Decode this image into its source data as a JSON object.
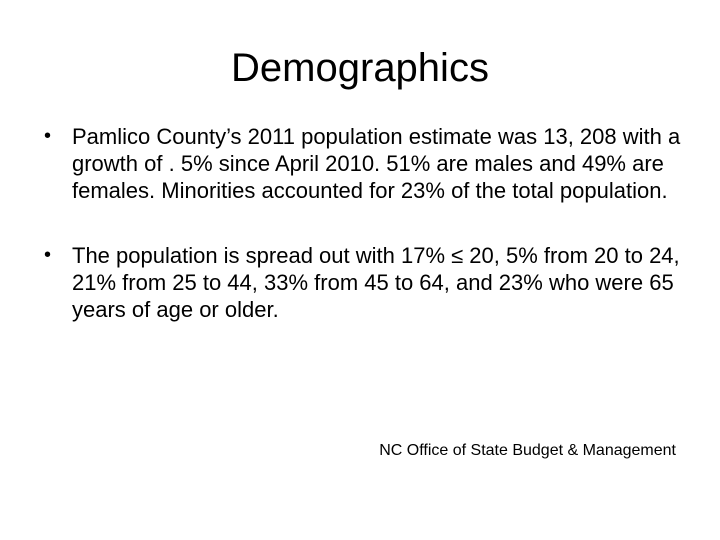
{
  "slide": {
    "title": "Demographics",
    "bullets": [
      {
        "marker": "•",
        "text": "Pamlico County’s 2011 population estimate was 13, 208 with a growth of . 5% since April 2010.  51% are males and 49% are females.  Minorities accounted for 23% of the total population."
      },
      {
        "marker": "•",
        "text": "The population is spread out with 17% ≤ 20,  5% from 20 to 24, 21% from 25 to 44, 33% from 45 to 64, and 23% who were 65 years of age or older."
      }
    ],
    "source": "NC Office of State Budget & Management"
  }
}
